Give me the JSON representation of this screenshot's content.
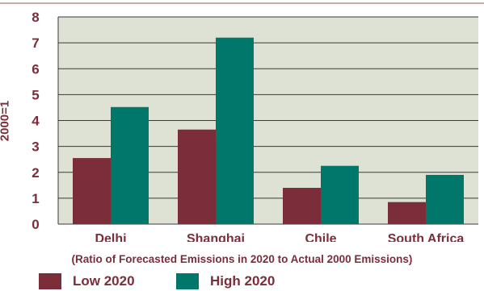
{
  "colors": {
    "plot_bg": "#dde2d4",
    "low": "#7b2d3a",
    "high": "#00776b",
    "text": "#7b2d3a",
    "grid": "#3a3a3a"
  },
  "chart_data": {
    "type": "bar",
    "title": "",
    "ylabel": "2000=1",
    "xlabel": "(Ratio of Forecasted Emissions in 2020 to Actual 2000 Emissions)",
    "categories": [
      "Delhi",
      "Shanghai",
      "Chile",
      "South Africa"
    ],
    "series": [
      {
        "name": "Low 2020",
        "color": "#7b2d3a",
        "values": [
          2.55,
          3.65,
          1.4,
          0.85
        ]
      },
      {
        "name": "High 2020",
        "color": "#00776b",
        "values": [
          4.52,
          7.2,
          2.25,
          1.9
        ]
      }
    ],
    "ylim": [
      0,
      8
    ],
    "yticks": [
      "0",
      "1",
      "2",
      "3",
      "4",
      "5",
      "6",
      "7",
      "8"
    ],
    "grid": true,
    "legend_position": "bottom-left"
  }
}
